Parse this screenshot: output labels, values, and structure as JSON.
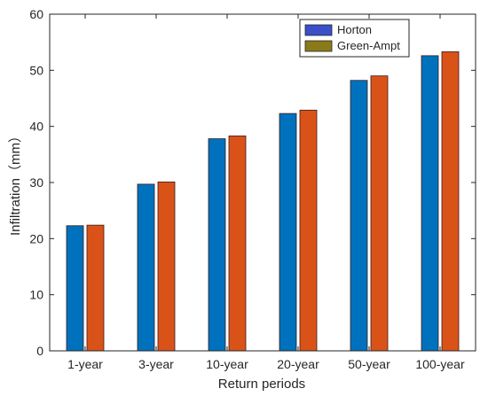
{
  "chart_data": {
    "type": "bar",
    "categories": [
      "1-year",
      "3-year",
      "10-year",
      "20-year",
      "50-year",
      "100-year"
    ],
    "series": [
      {
        "name": "Horton",
        "values": [
          22.3,
          29.7,
          37.8,
          42.3,
          48.2,
          52.6
        ]
      },
      {
        "name": "Green-Ampt",
        "values": [
          22.4,
          30.1,
          38.3,
          42.9,
          49.0,
          53.3
        ]
      }
    ],
    "title": "",
    "xlabel": "Return periods",
    "ylabel": "Infiltration（mm）",
    "ylim": [
      0,
      60
    ],
    "yticks": [
      0,
      10,
      20,
      30,
      40,
      50,
      60
    ],
    "grid": false,
    "legend_position": "top-right"
  },
  "colors": {
    "horton_fill": "#0072BD",
    "green_ampt_fill": "#D95319",
    "legend_horton_swatch": "#3a50c8",
    "legend_green_ampt_swatch": "#8a7a1a",
    "bar_edge": "#3a1a1a",
    "axis": "#262626"
  }
}
